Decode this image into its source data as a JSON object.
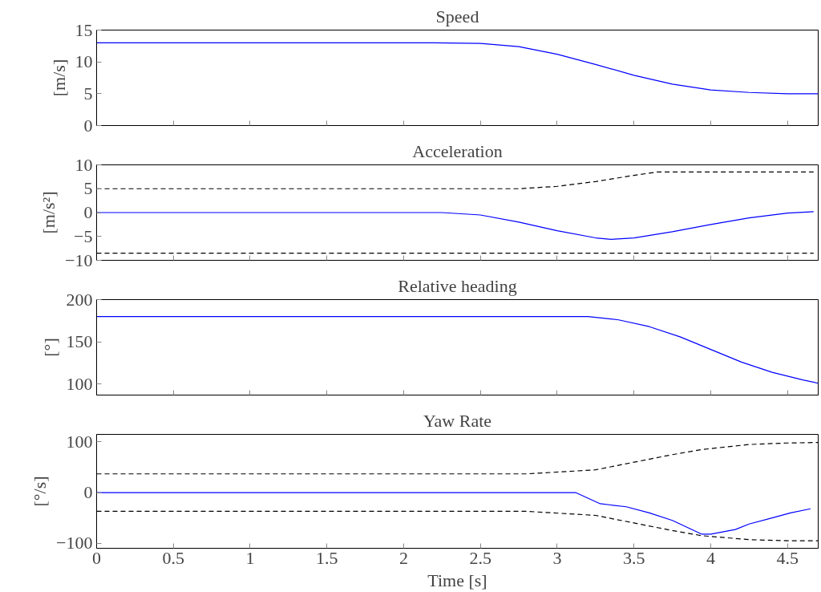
{
  "chart_data": [
    {
      "type": "line",
      "title": "Speed",
      "ylabel": "[m/s]",
      "xlim": [
        0,
        4.7
      ],
      "ylim": [
        0,
        15
      ],
      "yticks": [
        0,
        5,
        10,
        15
      ],
      "xticks": [
        0,
        0.5,
        1,
        1.5,
        2,
        2.5,
        3,
        3.5,
        4,
        4.5
      ],
      "tick_labels": "y",
      "grid": false,
      "series": [
        {
          "color": "#0000ff",
          "line_style": "solid",
          "x": [
            0,
            2.2,
            2.5,
            2.75,
            3,
            3.25,
            3.5,
            3.75,
            4,
            4.25,
            4.5,
            4.7
          ],
          "values": [
            13,
            13,
            12.9,
            12.4,
            11.2,
            9.6,
            7.9,
            6.5,
            5.6,
            5.2,
            5.0,
            5.0
          ]
        }
      ]
    },
    {
      "type": "line",
      "title": "Acceleration",
      "ylabel": "[m/s²]",
      "xlim": [
        0,
        4.7
      ],
      "ylim": [
        -10,
        10
      ],
      "yticks": [
        -10,
        -5,
        0,
        5,
        10
      ],
      "xticks": [
        0,
        0.5,
        1,
        1.5,
        2,
        2.5,
        3,
        3.5,
        4,
        4.5
      ],
      "tick_labels": "y",
      "grid": false,
      "series": [
        {
          "color": "#0000ff",
          "line_style": "solid",
          "x": [
            0,
            2.25,
            2.5,
            2.75,
            3,
            3.25,
            3.35,
            3.5,
            3.75,
            4,
            4.25,
            4.5,
            4.67
          ],
          "values": [
            0,
            0,
            -0.5,
            -2,
            -3.8,
            -5.3,
            -5.6,
            -5.3,
            -4,
            -2.5,
            -1.1,
            -0.1,
            0.2
          ]
        },
        {
          "color": "#000000",
          "line_style": "dashed",
          "x": [
            0,
            2.75,
            3,
            3.25,
            3.5,
            3.65,
            4.67
          ],
          "values": [
            5,
            5,
            5.5,
            6.5,
            7.8,
            8.5,
            8.5
          ]
        },
        {
          "color": "#000000",
          "line_style": "dashed",
          "x": [
            0,
            4.67
          ],
          "values": [
            -8.5,
            -8.5
          ]
        }
      ]
    },
    {
      "type": "line",
      "title": "Relative heading",
      "ylabel": "[°]",
      "xlim": [
        0,
        4.7
      ],
      "ylim": [
        87,
        200
      ],
      "yticks": [
        100,
        150,
        200
      ],
      "xticks": [
        0,
        0.5,
        1,
        1.5,
        2,
        2.5,
        3,
        3.5,
        4,
        4.5
      ],
      "tick_labels": "y",
      "grid": false,
      "series": [
        {
          "color": "#0000ff",
          "line_style": "solid",
          "x": [
            0,
            3.2,
            3.4,
            3.6,
            3.8,
            4,
            4.2,
            4.4,
            4.6,
            4.7
          ],
          "values": [
            180,
            180,
            176,
            168,
            156,
            141,
            126,
            114,
            105,
            101
          ]
        }
      ]
    },
    {
      "type": "line",
      "title": "Yaw Rate",
      "ylabel": "[°/s]",
      "xlabel": "Time [s]",
      "xlim": [
        0,
        4.7
      ],
      "ylim": [
        -110,
        115
      ],
      "yticks": [
        -100,
        0,
        100
      ],
      "xticks": [
        0,
        0.5,
        1,
        1.5,
        2,
        2.5,
        3,
        3.5,
        4,
        4.5
      ],
      "grid": false,
      "series": [
        {
          "color": "#0000ff",
          "line_style": "solid",
          "x": [
            0,
            3.12,
            3.28,
            3.45,
            3.6,
            3.75,
            3.94,
            4.0,
            4.16,
            4.25,
            4.4,
            4.52,
            4.65
          ],
          "values": [
            0,
            0,
            -22,
            -28,
            -40,
            -55,
            -82,
            -82,
            -73,
            -62,
            -50,
            -40,
            -32
          ]
        },
        {
          "color": "#000000",
          "line_style": "dashed",
          "x": [
            0,
            2.8,
            3.25,
            3.5,
            3.75,
            3.94,
            4.25,
            4.5,
            4.7
          ],
          "values": [
            37,
            37,
            45,
            60,
            75,
            85,
            95,
            98,
            99
          ]
        },
        {
          "color": "#000000",
          "line_style": "dashed",
          "x": [
            0,
            2.8,
            3.25,
            3.5,
            3.75,
            3.94,
            4.25,
            4.5,
            4.7
          ],
          "values": [
            -37,
            -37,
            -45,
            -60,
            -75,
            -85,
            -93,
            -95,
            -95
          ]
        }
      ]
    }
  ]
}
